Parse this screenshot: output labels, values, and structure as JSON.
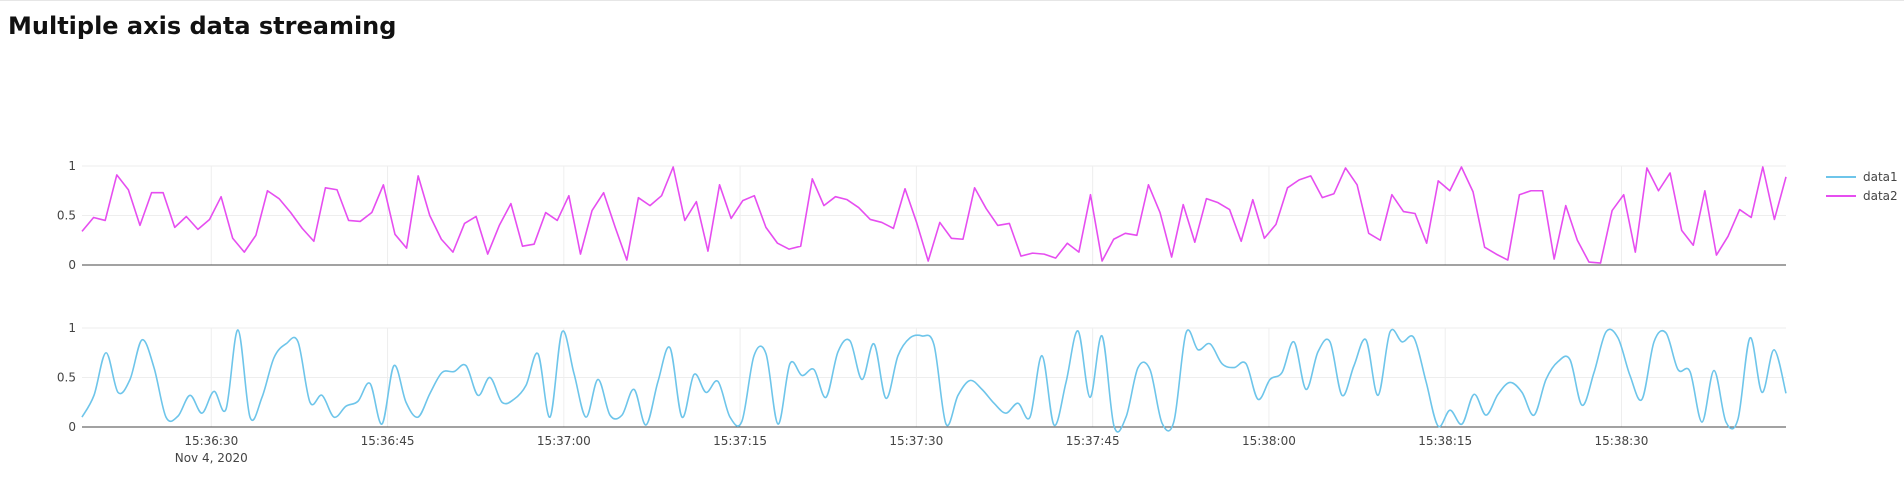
{
  "page": {
    "title": "Multiple axis data streaming"
  },
  "chart_data": {
    "type": "line",
    "title": "Multiple axis data streaming",
    "x_start": "2020-11-04 15:36:19",
    "x_end": "2020-11-04 15:38:44",
    "x_ticks": [
      {
        "time": "15:36:30",
        "sub": "Nov 4, 2020"
      },
      {
        "time": "15:36:45",
        "sub": ""
      },
      {
        "time": "15:37:00",
        "sub": ""
      },
      {
        "time": "15:37:15",
        "sub": ""
      },
      {
        "time": "15:37:30",
        "sub": ""
      },
      {
        "time": "15:37:45",
        "sub": ""
      },
      {
        "time": "15:38:00",
        "sub": ""
      },
      {
        "time": "15:38:15",
        "sub": ""
      },
      {
        "time": "15:38:30",
        "sub": ""
      }
    ],
    "y_ticks": [
      "0",
      "0.5",
      "1"
    ],
    "ylim": [
      0,
      1
    ],
    "legend_position": "top-right",
    "grid": true,
    "series": [
      {
        "name": "data2",
        "color": "#e64ef0",
        "axis": "top",
        "shape": "linear",
        "values": [
          0.34,
          0.48,
          0.45,
          0.91,
          0.76,
          0.4,
          0.73,
          0.73,
          0.38,
          0.49,
          0.36,
          0.46,
          0.69,
          0.27,
          0.13,
          0.3,
          0.75,
          0.67,
          0.53,
          0.37,
          0.24,
          0.78,
          0.76,
          0.45,
          0.44,
          0.53,
          0.81,
          0.31,
          0.17,
          0.9,
          0.5,
          0.26,
          0.13,
          0.42,
          0.49,
          0.11,
          0.4,
          0.62,
          0.19,
          0.21,
          0.53,
          0.45,
          0.7,
          0.11,
          0.55,
          0.73,
          0.38,
          0.05,
          0.68,
          0.6,
          0.7,
          0.99,
          0.45,
          0.64,
          0.14,
          0.81,
          0.47,
          0.65,
          0.7,
          0.38,
          0.22,
          0.16,
          0.19,
          0.87,
          0.6,
          0.69,
          0.66,
          0.58,
          0.46,
          0.43,
          0.37,
          0.77,
          0.43,
          0.04,
          0.43,
          0.27,
          0.26,
          0.78,
          0.57,
          0.4,
          0.42,
          0.09,
          0.12,
          0.11,
          0.07,
          0.22,
          0.13,
          0.71,
          0.04,
          0.26,
          0.32,
          0.3,
          0.81,
          0.53,
          0.08,
          0.61,
          0.23,
          0.67,
          0.63,
          0.56,
          0.24,
          0.66,
          0.27,
          0.41,
          0.78,
          0.86,
          0.9,
          0.68,
          0.72,
          0.98,
          0.81,
          0.32,
          0.25,
          0.71,
          0.54,
          0.52,
          0.22,
          0.85,
          0.75,
          0.99,
          0.74,
          0.18,
          0.11,
          0.05,
          0.71,
          0.75,
          0.75,
          0.06,
          0.6,
          0.25,
          0.03,
          0.02,
          0.55,
          0.71,
          0.13,
          0.98,
          0.75,
          0.93,
          0.35,
          0.2,
          0.75,
          0.1,
          0.29,
          0.56,
          0.48,
          0.99,
          0.46,
          0.89
        ]
      },
      {
        "name": "data1",
        "color": "#6ec5ea",
        "axis": "bottom",
        "shape": "spline",
        "values": [
          0.1,
          0.32,
          0.75,
          0.35,
          0.48,
          0.88,
          0.6,
          0.1,
          0.11,
          0.32,
          0.14,
          0.36,
          0.18,
          0.98,
          0.1,
          0.3,
          0.7,
          0.84,
          0.86,
          0.25,
          0.32,
          0.1,
          0.21,
          0.26,
          0.44,
          0.03,
          0.62,
          0.25,
          0.1,
          0.34,
          0.55,
          0.56,
          0.62,
          0.32,
          0.5,
          0.25,
          0.28,
          0.42,
          0.74,
          0.1,
          0.96,
          0.54,
          0.1,
          0.48,
          0.12,
          0.12,
          0.38,
          0.02,
          0.46,
          0.8,
          0.1,
          0.53,
          0.35,
          0.46,
          0.1,
          0.06,
          0.72,
          0.74,
          0.03,
          0.64,
          0.52,
          0.58,
          0.3,
          0.76,
          0.87,
          0.48,
          0.84,
          0.29,
          0.72,
          0.9,
          0.92,
          0.83,
          0.03,
          0.32,
          0.47,
          0.38,
          0.24,
          0.14,
          0.24,
          0.1,
          0.72,
          0.02,
          0.45,
          0.97,
          0.3,
          0.92,
          0.01,
          0.1,
          0.6,
          0.58,
          0.04,
          0.06,
          0.95,
          0.78,
          0.84,
          0.64,
          0.6,
          0.64,
          0.28,
          0.48,
          0.55,
          0.86,
          0.38,
          0.76,
          0.86,
          0.32,
          0.62,
          0.88,
          0.32,
          0.96,
          0.86,
          0.9,
          0.46,
          0.01,
          0.17,
          0.03,
          0.33,
          0.12,
          0.33,
          0.45,
          0.35,
          0.12,
          0.48,
          0.66,
          0.68,
          0.22,
          0.55,
          0.96,
          0.9,
          0.52,
          0.28,
          0.86,
          0.95,
          0.58,
          0.56,
          0.05,
          0.57,
          0.05,
          0.08,
          0.9,
          0.35,
          0.78,
          0.34
        ]
      }
    ]
  }
}
